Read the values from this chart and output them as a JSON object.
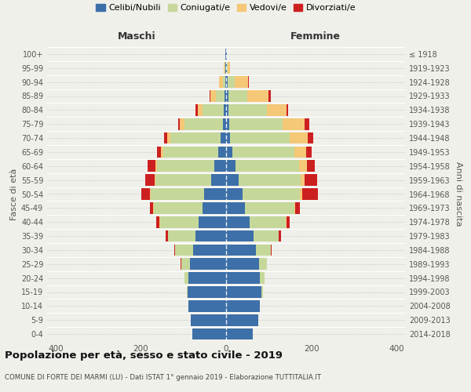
{
  "age_groups": [
    "0-4",
    "5-9",
    "10-14",
    "15-19",
    "20-24",
    "25-29",
    "30-34",
    "35-39",
    "40-44",
    "45-49",
    "50-54",
    "55-59",
    "60-64",
    "65-69",
    "70-74",
    "75-79",
    "80-84",
    "85-89",
    "90-94",
    "95-99",
    "100+"
  ],
  "birth_years": [
    "2014-2018",
    "2009-2013",
    "2004-2008",
    "1999-2003",
    "1994-1998",
    "1989-1993",
    "1984-1988",
    "1979-1983",
    "1974-1978",
    "1969-1973",
    "1964-1968",
    "1959-1963",
    "1954-1958",
    "1949-1953",
    "1944-1948",
    "1939-1943",
    "1934-1938",
    "1929-1933",
    "1924-1928",
    "1919-1923",
    "≤ 1918"
  ],
  "colors": {
    "celibi": "#3d6fa8",
    "coniugati": "#c5d89a",
    "vedovi": "#f5c878",
    "divorziati": "#cc2020"
  },
  "maschi": {
    "celibi": [
      80,
      82,
      88,
      90,
      88,
      85,
      78,
      72,
      65,
      55,
      52,
      35,
      28,
      18,
      12,
      8,
      5,
      4,
      2,
      2,
      1
    ],
    "coniugati": [
      0,
      0,
      0,
      3,
      10,
      20,
      42,
      65,
      90,
      115,
      125,
      130,
      135,
      130,
      118,
      90,
      50,
      20,
      5,
      1,
      0
    ],
    "vedovi": [
      0,
      0,
      0,
      0,
      0,
      0,
      0,
      0,
      1,
      1,
      2,
      2,
      3,
      5,
      8,
      10,
      12,
      12,
      10,
      2,
      0
    ],
    "divorziati": [
      0,
      0,
      0,
      0,
      0,
      2,
      2,
      5,
      8,
      8,
      20,
      22,
      18,
      10,
      8,
      5,
      5,
      2,
      0,
      0,
      0
    ]
  },
  "femmine": {
    "celibi": [
      62,
      75,
      80,
      82,
      80,
      78,
      70,
      65,
      55,
      45,
      38,
      30,
      22,
      15,
      10,
      8,
      6,
      5,
      3,
      2,
      1
    ],
    "coniugati": [
      0,
      0,
      0,
      5,
      10,
      18,
      35,
      58,
      85,
      115,
      135,
      145,
      150,
      145,
      140,
      125,
      90,
      45,
      18,
      2,
      0
    ],
    "vedovi": [
      0,
      0,
      0,
      0,
      0,
      0,
      0,
      1,
      1,
      2,
      5,
      10,
      18,
      28,
      42,
      52,
      45,
      50,
      30,
      5,
      0
    ],
    "divorziati": [
      0,
      0,
      0,
      0,
      0,
      0,
      2,
      5,
      8,
      12,
      38,
      28,
      18,
      12,
      12,
      10,
      5,
      5,
      2,
      0,
      0
    ]
  },
  "title": "Popolazione per età, sesso e stato civile - 2019",
  "subtitle": "COMUNE DI FORTE DEI MARMI (LU) - Dati ISTAT 1° gennaio 2019 - Elaborazione TUTTITALIA.IT",
  "xlabel_left": "Maschi",
  "xlabel_right": "Femmine",
  "ylabel_left": "Fasce di età",
  "ylabel_right": "Anni di nascita",
  "xlim": 420,
  "legend_labels": [
    "Celibi/Nubili",
    "Coniugati/e",
    "Vedovi/e",
    "Divorziati/e"
  ]
}
